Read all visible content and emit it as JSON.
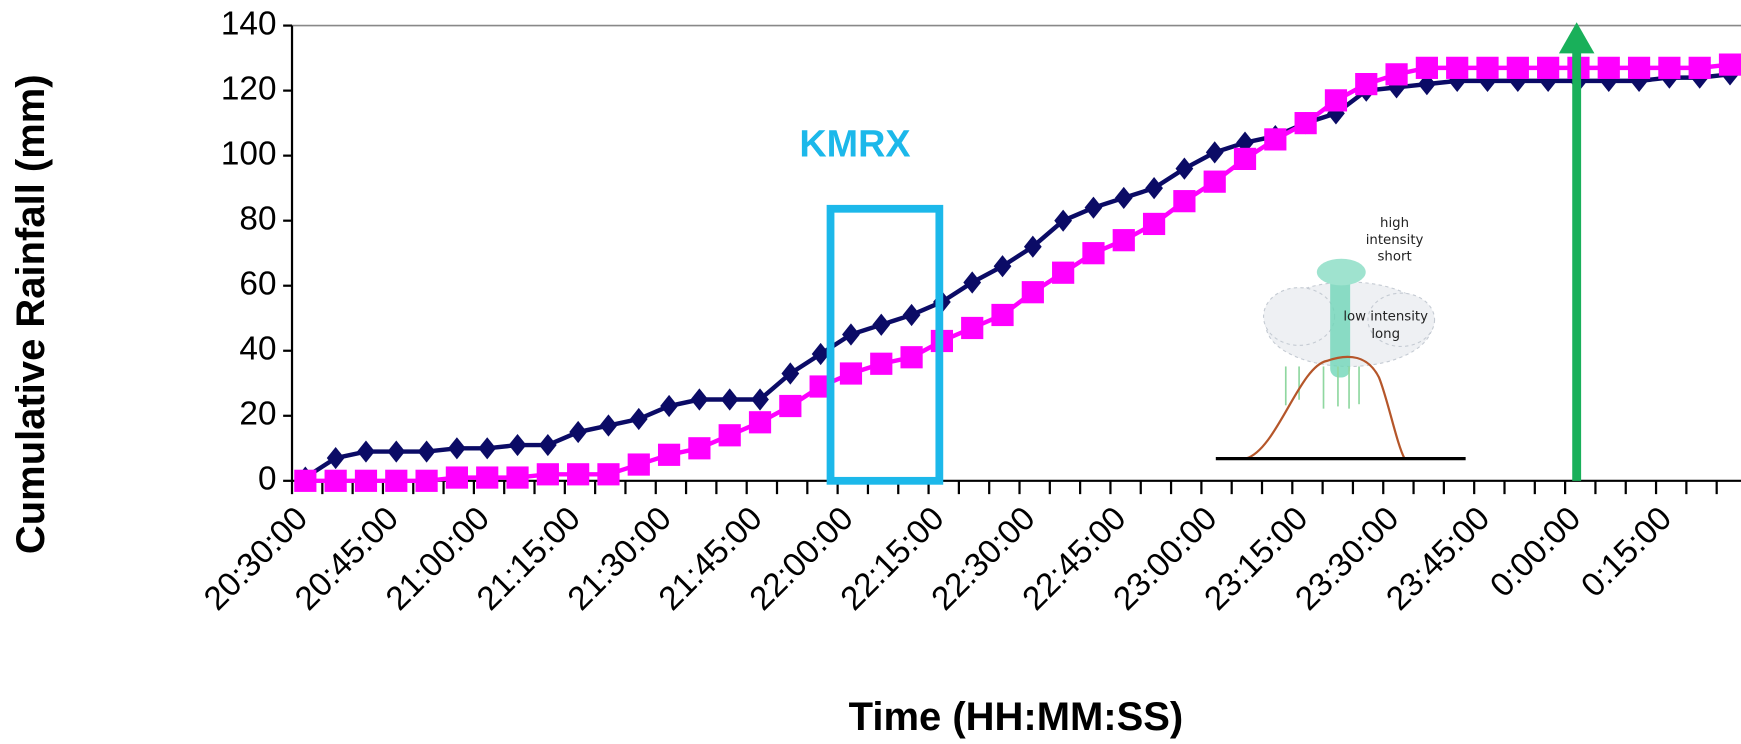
{
  "chart_data": {
    "type": "line",
    "x_label": "Time (HH:MM:SS)",
    "y_label": "Cumulative Rainfall (mm)",
    "categories": [
      "20:30:00",
      null,
      null,
      "20:45:00",
      null,
      null,
      "21:00:00",
      null,
      null,
      "21:15:00",
      null,
      null,
      "21:30:00",
      null,
      null,
      "21:45:00",
      null,
      null,
      "22:00:00",
      null,
      null,
      "22:15:00",
      null,
      null,
      "22:30:00",
      null,
      null,
      "22:45:00",
      null,
      null,
      "23:00:00",
      null,
      null,
      "23:15:00",
      null,
      null,
      "23:30:00",
      null,
      null,
      "23:45:00",
      null,
      null,
      "0:00:00",
      null,
      null,
      "0:15:00",
      null,
      null
    ],
    "series": [
      {
        "color": "#0b0b66",
        "marker": "diamond",
        "values": [
          1,
          7,
          9,
          9,
          9,
          10,
          10,
          11,
          11,
          15,
          17,
          19,
          23,
          25,
          25,
          25,
          33,
          39,
          45,
          48,
          51,
          55,
          61,
          66,
          72,
          80,
          84,
          87,
          90,
          96,
          101,
          104,
          106,
          110,
          113,
          120,
          121,
          122,
          123,
          123,
          123,
          123,
          123,
          123,
          123,
          124,
          124,
          125
        ]
      },
      {
        "color": "#ff00ff",
        "marker": "square",
        "values": [
          0,
          0,
          0,
          0,
          0,
          1,
          1,
          1,
          2,
          2,
          2,
          5,
          8,
          10,
          14,
          18,
          23,
          29,
          33,
          36,
          38,
          43,
          47,
          51,
          58,
          64,
          70,
          74,
          79,
          86,
          92,
          99,
          105,
          110,
          117,
          122,
          125,
          127,
          127,
          127,
          127,
          127,
          127,
          127,
          127,
          127,
          127,
          128
        ]
      }
    ],
    "ylim": [
      0,
      140
    ],
    "yticks": [
      0,
      20,
      40,
      60,
      80,
      100,
      120,
      140
    ],
    "annotation": "KMRX",
    "inset_labels": [
      [
        "high",
        "intensity",
        "short"
      ],
      [
        "low intensity",
        "long"
      ]
    ]
  }
}
